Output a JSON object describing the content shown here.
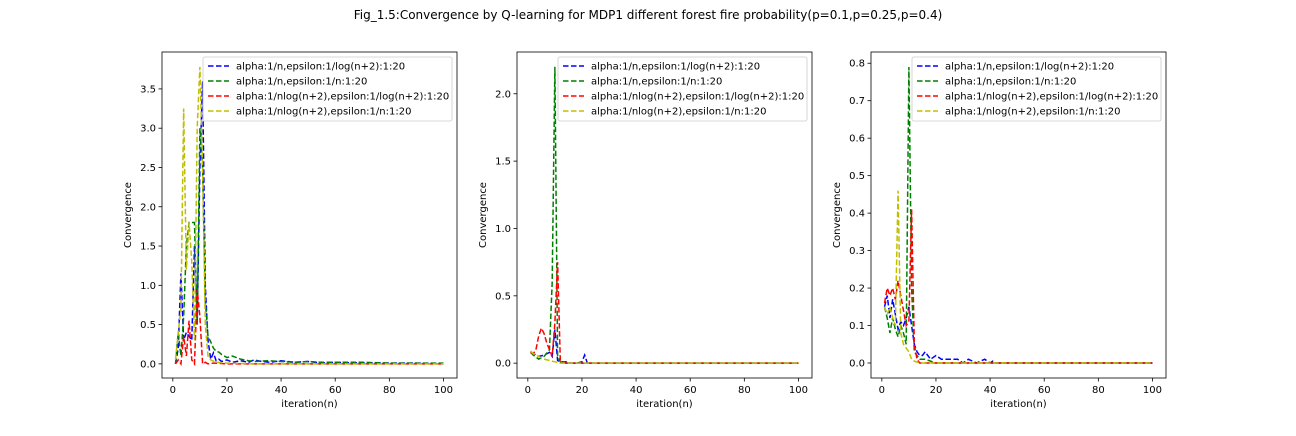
{
  "figure": {
    "title": "Fig_1.5:Convergence by Q-learning for MDP1 different forest fire probability(p=0.1,p=0.25,p=0.4)"
  },
  "colors": {
    "alpha:1/n,epsilon:1/log(n+2):1:20": "#0000ff",
    "alpha:1/n,epsilon:1/n:1:20": "#008000",
    "alpha:1/nlog(n+2),epsilon:1/log(n+2):1:20": "#ff0000",
    "alpha:1/nlog(n+2),epsilon:1/n:1:20": "#bfbf00"
  },
  "chart_data": [
    {
      "type": "line",
      "xlabel": "iteration(n)",
      "ylabel": "Convergence",
      "xlim": [
        -4,
        105
      ],
      "ylim": [
        -0.18,
        3.97
      ],
      "xticks": [
        0,
        20,
        40,
        60,
        80,
        100
      ],
      "yticks": [
        0.0,
        0.5,
        1.0,
        1.5,
        2.0,
        2.5,
        3.0,
        3.5
      ],
      "grid": false,
      "legend_position": "top-right",
      "series": [
        {
          "name": "alpha:1/n,epsilon:1/log(n+2):1:20",
          "x": [
            1,
            2,
            3,
            4,
            5,
            6,
            7,
            8,
            9,
            10,
            11,
            12,
            13,
            14,
            15,
            16,
            17,
            18,
            20,
            22,
            25,
            28,
            30,
            33,
            36,
            40,
            45,
            50,
            55,
            60,
            70,
            80,
            90,
            100
          ],
          "y": [
            0.0,
            0.2,
            1.15,
            0.3,
            0.4,
            0.35,
            0.3,
            1.5,
            0.5,
            2.5,
            3.6,
            1.0,
            0.3,
            0.06,
            0.14,
            0.04,
            0.06,
            0.03,
            0.05,
            0.02,
            0.04,
            0.02,
            0.05,
            0.03,
            0.02,
            0.04,
            0.02,
            0.03,
            0.01,
            0.02,
            0.01,
            0.01,
            0.01,
            0.0
          ]
        },
        {
          "name": "alpha:1/n,epsilon:1/n:1:20",
          "x": [
            1,
            2,
            3,
            4,
            5,
            6,
            7,
            8,
            9,
            10,
            11,
            12,
            13,
            14,
            15,
            16,
            17,
            18,
            20,
            22,
            25,
            28,
            30,
            35,
            40,
            45,
            50,
            55,
            60,
            70,
            80,
            90,
            100
          ],
          "y": [
            0.0,
            0.4,
            0.1,
            0.6,
            1.5,
            1.8,
            1.8,
            1.8,
            0.5,
            3.0,
            2.5,
            0.8,
            0.35,
            0.28,
            0.2,
            0.16,
            0.15,
            0.12,
            0.08,
            0.1,
            0.06,
            0.04,
            0.03,
            0.04,
            0.03,
            0.02,
            0.03,
            0.02,
            0.02,
            0.02,
            0.01,
            0.01,
            0.01
          ]
        },
        {
          "name": "alpha:1/nlog(n+2),epsilon:1/log(n+2):1:20",
          "x": [
            1,
            2,
            3,
            4,
            5,
            6,
            7,
            8,
            9,
            10,
            11,
            12,
            13,
            15,
            20,
            30,
            40,
            60,
            80,
            100
          ],
          "y": [
            0.0,
            0.05,
            0.0,
            0.35,
            0.1,
            0.55,
            0.05,
            0.0,
            0.95,
            0.6,
            0.0,
            0.02,
            0.0,
            0.01,
            0.0,
            0.0,
            0.0,
            0.0,
            0.0,
            0.0
          ]
        },
        {
          "name": "alpha:1/nlog(n+2),epsilon:1/n:1:20",
          "x": [
            1,
            2,
            3,
            4,
            5,
            6,
            7,
            8,
            9,
            10,
            11,
            12,
            13,
            14,
            16,
            20,
            30,
            40,
            60,
            80,
            100
          ],
          "y": [
            0.05,
            0.4,
            0.7,
            3.25,
            1.2,
            1.8,
            1.3,
            0.3,
            3.0,
            3.78,
            2.5,
            0.5,
            0.1,
            0.05,
            0.02,
            0.01,
            0.0,
            0.0,
            0.0,
            0.0,
            0.0
          ]
        }
      ]
    },
    {
      "type": "line",
      "xlabel": "iteration(n)",
      "ylabel": "Convergence",
      "xlim": [
        -4,
        105
      ],
      "ylim": [
        -0.11,
        2.31
      ],
      "xticks": [
        0,
        20,
        40,
        60,
        80,
        100
      ],
      "yticks": [
        0.0,
        0.5,
        1.0,
        1.5,
        2.0
      ],
      "grid": false,
      "legend_position": "top-right",
      "series": [
        {
          "name": "alpha:1/n,epsilon:1/log(n+2):1:20",
          "x": [
            1,
            2,
            4,
            6,
            8,
            9,
            10,
            11,
            12,
            14,
            16,
            18,
            20,
            21,
            22,
            25,
            30,
            40,
            60,
            80,
            100
          ],
          "y": [
            0.08,
            0.07,
            0.05,
            0.06,
            0.08,
            0.05,
            0.25,
            0.02,
            0.01,
            0.01,
            0.0,
            0.0,
            0.01,
            0.06,
            0.0,
            0.0,
            0.0,
            0.0,
            0.0,
            0.0,
            0.0
          ]
        },
        {
          "name": "alpha:1/n,epsilon:1/n:1:20",
          "x": [
            1,
            2,
            4,
            6,
            8,
            9,
            10,
            11,
            12,
            14,
            16,
            20,
            30,
            40,
            60,
            80,
            100
          ],
          "y": [
            0.08,
            0.06,
            0.03,
            0.05,
            0.1,
            0.6,
            2.2,
            0.05,
            0.01,
            0.0,
            0.0,
            0.0,
            0.0,
            0.0,
            0.0,
            0.0,
            0.0
          ]
        },
        {
          "name": "alpha:1/nlog(n+2),epsilon:1/log(n+2):1:20",
          "x": [
            1,
            2,
            3,
            4,
            5,
            6,
            7,
            8,
            9,
            10,
            11,
            12,
            14,
            16,
            20,
            30,
            40,
            60,
            80,
            100
          ],
          "y": [
            0.08,
            0.07,
            0.1,
            0.2,
            0.26,
            0.22,
            0.15,
            0.1,
            0.05,
            0.3,
            0.75,
            0.02,
            0.0,
            0.0,
            0.0,
            0.0,
            0.0,
            0.0,
            0.0,
            0.0
          ]
        },
        {
          "name": "alpha:1/nlog(n+2),epsilon:1/n:1:20",
          "x": [
            1,
            2,
            4,
            6,
            8,
            10,
            12,
            14,
            20,
            30,
            40,
            60,
            80,
            100
          ],
          "y": [
            0.09,
            0.07,
            0.05,
            0.03,
            0.02,
            0.01,
            0.0,
            0.0,
            0.0,
            0.0,
            0.0,
            0.0,
            0.0,
            0.0
          ]
        }
      ]
    },
    {
      "type": "line",
      "xlabel": "iteration(n)",
      "ylabel": "Convergence",
      "xlim": [
        -4,
        105
      ],
      "ylim": [
        -0.04,
        0.83
      ],
      "xticks": [
        0,
        20,
        40,
        60,
        80,
        100
      ],
      "yticks": [
        0.0,
        0.1,
        0.2,
        0.3,
        0.4,
        0.5,
        0.6,
        0.7,
        0.8
      ],
      "grid": false,
      "legend_position": "top-right",
      "series": [
        {
          "name": "alpha:1/n,epsilon:1/log(n+2):1:20",
          "x": [
            1,
            2,
            3,
            4,
            5,
            6,
            7,
            8,
            9,
            10,
            11,
            12,
            13,
            14,
            15,
            16,
            18,
            20,
            22,
            25,
            28,
            30,
            32,
            35,
            38,
            40,
            41,
            42,
            45,
            50,
            60,
            80,
            100
          ],
          "y": [
            0.15,
            0.18,
            0.12,
            0.17,
            0.13,
            0.09,
            0.11,
            0.1,
            0.12,
            0.15,
            0.1,
            0.05,
            0.03,
            0.02,
            0.02,
            0.03,
            0.01,
            0.02,
            0.01,
            0.01,
            0.01,
            0.0,
            0.01,
            0.0,
            0.01,
            0.0,
            0.005,
            0.0,
            0.0,
            0.0,
            0.0,
            0.0,
            0.0
          ]
        },
        {
          "name": "alpha:1/n,epsilon:1/n:1:20",
          "x": [
            1,
            2,
            3,
            4,
            5,
            6,
            7,
            8,
            9,
            10,
            11,
            12,
            13,
            14,
            16,
            18,
            20,
            30,
            40,
            60,
            80,
            100
          ],
          "y": [
            0.15,
            0.12,
            0.08,
            0.12,
            0.09,
            0.07,
            0.1,
            0.08,
            0.05,
            0.79,
            0.2,
            0.03,
            0.02,
            0.01,
            0.01,
            0.005,
            0.0,
            0.0,
            0.0,
            0.0,
            0.0,
            0.0
          ]
        },
        {
          "name": "alpha:1/nlog(n+2),epsilon:1/log(n+2):1:20",
          "x": [
            1,
            2,
            3,
            4,
            5,
            6,
            7,
            8,
            9,
            10,
            11,
            12,
            13,
            14,
            16,
            20,
            30,
            40,
            60,
            80,
            100
          ],
          "y": [
            0.16,
            0.2,
            0.18,
            0.2,
            0.17,
            0.22,
            0.18,
            0.14,
            0.1,
            0.11,
            0.41,
            0.05,
            0.01,
            0.0,
            0.0,
            0.0,
            0.0,
            0.0,
            0.0,
            0.0,
            0.0
          ]
        },
        {
          "name": "alpha:1/nlog(n+2),epsilon:1/n:1:20",
          "x": [
            1,
            2,
            3,
            4,
            5,
            6,
            7,
            8,
            9,
            10,
            11,
            12,
            14,
            16,
            20,
            30,
            40,
            60,
            80,
            100
          ],
          "y": [
            0.15,
            0.13,
            0.15,
            0.12,
            0.1,
            0.46,
            0.08,
            0.05,
            0.04,
            0.03,
            0.01,
            0.005,
            0.0,
            0.0,
            0.0,
            0.0,
            0.0,
            0.0,
            0.0,
            0.0
          ]
        }
      ]
    }
  ]
}
